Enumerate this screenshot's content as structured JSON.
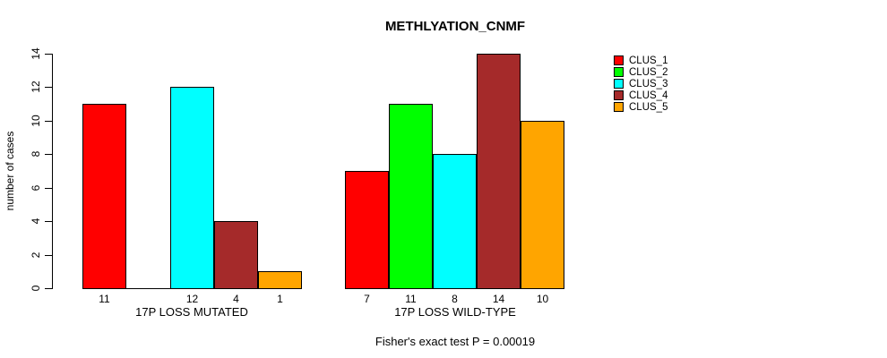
{
  "chart_data": {
    "type": "bar",
    "title": "METHLYATION_CNMF",
    "ylabel": "number of cases",
    "xlabel": "",
    "ylim": [
      0,
      14
    ],
    "yticks": [
      0,
      2,
      4,
      6,
      8,
      10,
      12,
      14
    ],
    "categories": [
      "17P LOSS MUTATED",
      "17P LOSS WILD-TYPE"
    ],
    "series": [
      {
        "name": "CLUS_1",
        "color": "#FF0000",
        "values": [
          11,
          7
        ]
      },
      {
        "name": "CLUS_2",
        "color": "#00FF00",
        "values": [
          0,
          11
        ]
      },
      {
        "name": "CLUS_3",
        "color": "#00FFFF",
        "values": [
          12,
          8
        ]
      },
      {
        "name": "CLUS_4",
        "color": "#A52A2A",
        "values": [
          4,
          14
        ]
      },
      {
        "name": "CLUS_5",
        "color": "#FFA500",
        "values": [
          1,
          10
        ]
      }
    ],
    "bar_value_labels": [
      [
        "11",
        "",
        "12",
        "4",
        "1"
      ],
      [
        "7",
        "11",
        "8",
        "14",
        "10"
      ]
    ],
    "annotation": "Fisher's exact test P = 0.00019",
    "legend_position": "right",
    "grid": false
  }
}
